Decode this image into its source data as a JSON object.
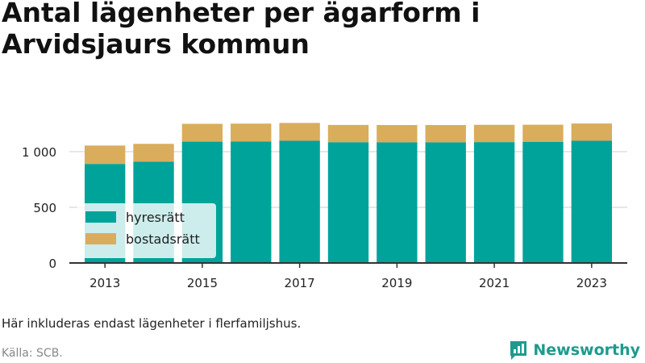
{
  "title": "Antal lägenheter per ägarform i Arvidsjaurs kommun",
  "note": "Här inkluderas endast lägenheter i flerfamiljshus.",
  "source": "Källa: SCB.",
  "brand": "Newsworthy",
  "colors": {
    "hyresratt": "#00a39a",
    "bostadsratt": "#d9ad5b",
    "brand": "#1e9a8e",
    "grid": "#dddddd",
    "axis": "#333333"
  },
  "chart_data": {
    "type": "bar",
    "stacked": true,
    "categories": [
      "2013",
      "2014",
      "2015",
      "2016",
      "2017",
      "2018",
      "2019",
      "2020",
      "2021",
      "2022",
      "2023"
    ],
    "series": [
      {
        "name": "hyresrätt",
        "values": [
          890,
          910,
          1090,
          1092,
          1098,
          1085,
          1084,
          1084,
          1086,
          1087,
          1098
        ]
      },
      {
        "name": "bostadsrätt",
        "values": [
          165,
          160,
          160,
          160,
          160,
          155,
          155,
          155,
          155,
          155,
          155
        ]
      }
    ],
    "x_tick_labels": [
      "2013",
      "2015",
      "2017",
      "2019",
      "2021",
      "2023"
    ],
    "y_ticks": [
      0,
      500,
      1000
    ],
    "y_tick_labels": [
      "0",
      "500",
      "1 000"
    ],
    "ylim": [
      0,
      1300
    ],
    "grid": true,
    "legend_position": "bottom-left"
  }
}
